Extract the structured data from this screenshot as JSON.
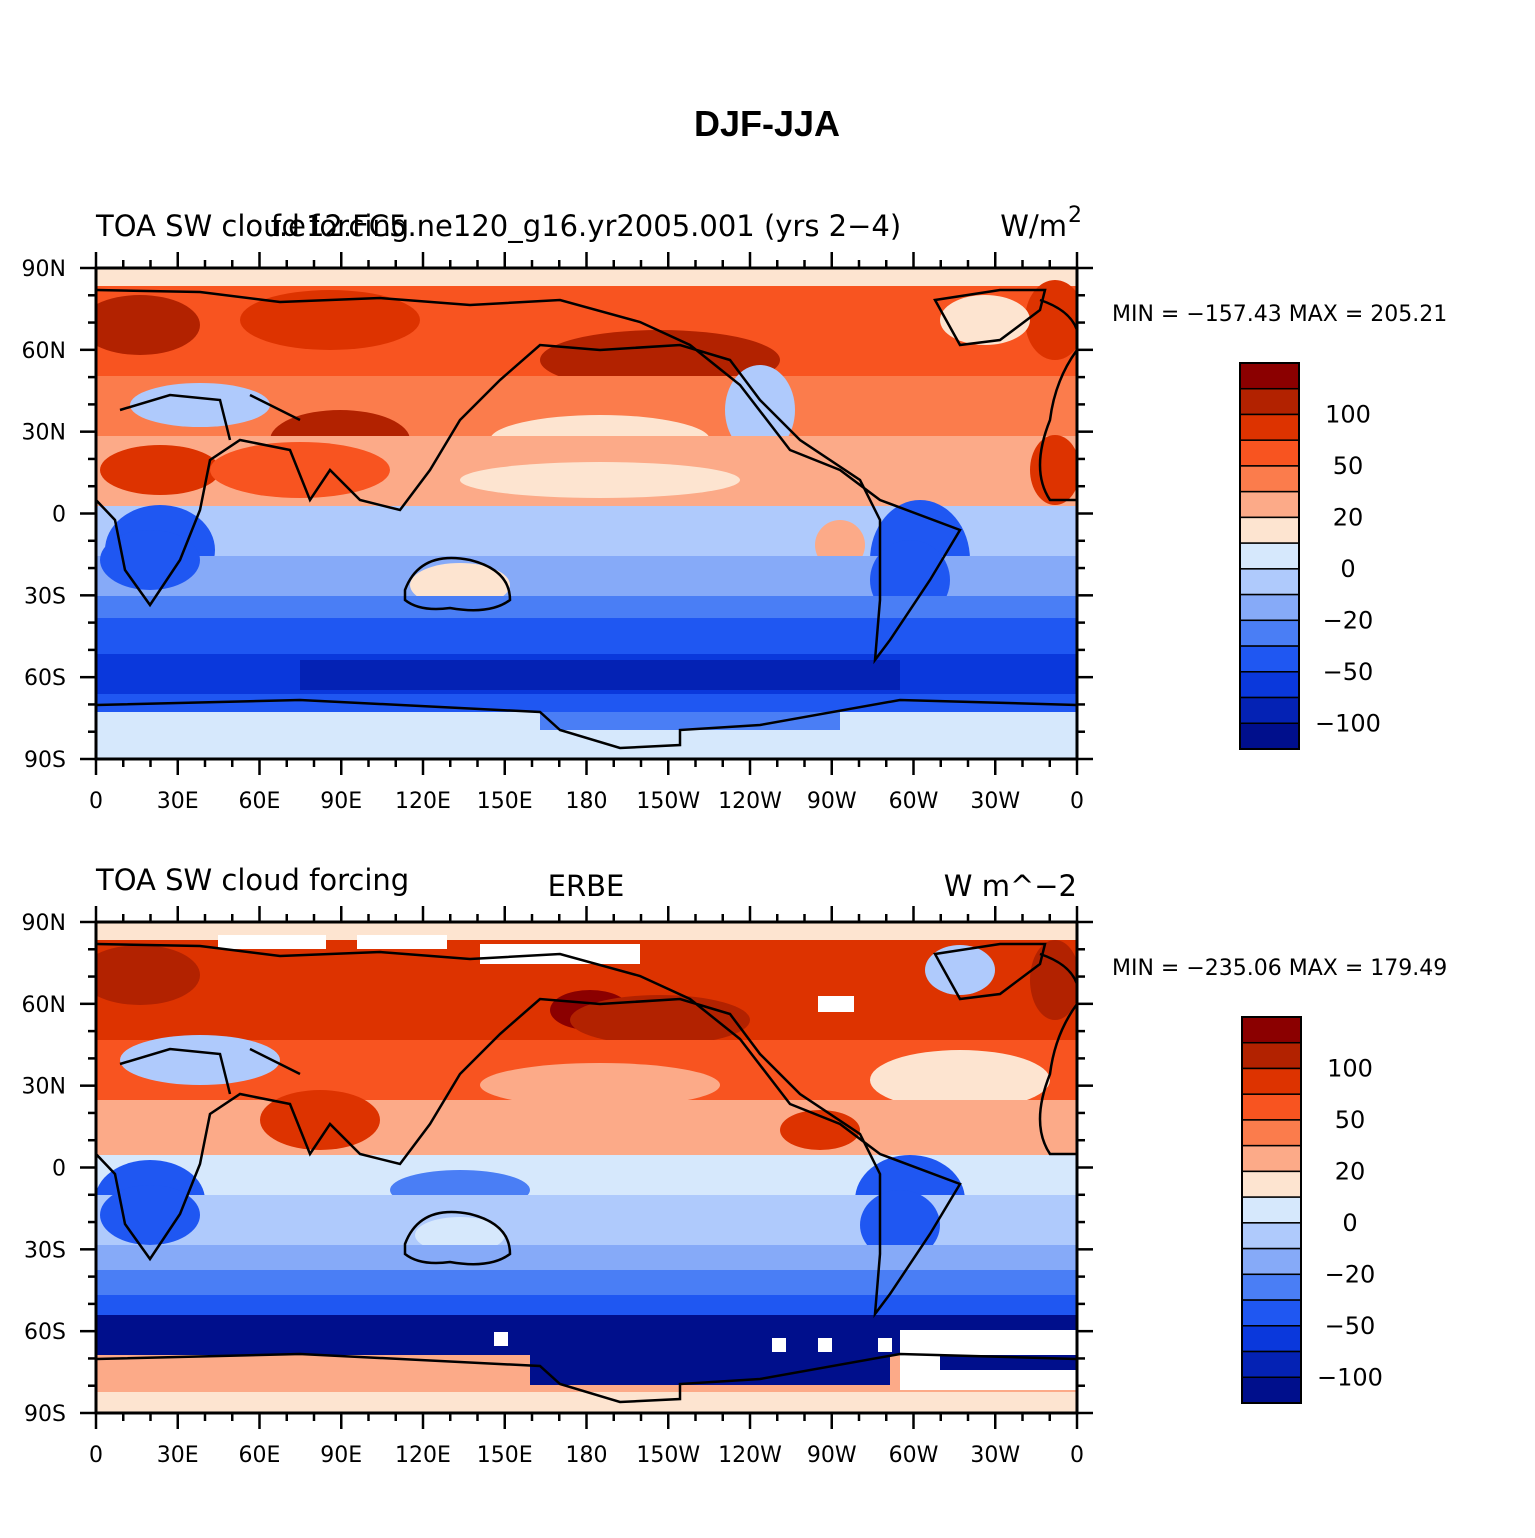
{
  "figure": {
    "title": "DJF-JJA"
  },
  "colorbar": {
    "colors": [
      "#8b0000",
      "#b22200",
      "#dd3300",
      "#f85420",
      "#fb7c4c",
      "#fcaa88",
      "#fde4d0",
      "#d6e8fc",
      "#afcafc",
      "#86aaf8",
      "#4a7ef5",
      "#1f57f2",
      "#0a38dc",
      "#0422b4",
      "#000f8c"
    ],
    "labels": [
      {
        "text": "100",
        "index": 2
      },
      {
        "text": "50",
        "index": 4
      },
      {
        "text": "20",
        "index": 6
      },
      {
        "text": "0",
        "index": 8
      },
      {
        "text": "−20",
        "index": 10
      },
      {
        "text": "−50",
        "index": 12
      },
      {
        "text": "−100",
        "index": 14
      }
    ]
  },
  "axes": {
    "lat_labels": [
      "90N",
      "60N",
      "30N",
      "0",
      "30S",
      "60S",
      "90S"
    ],
    "lon_labels": [
      "0",
      "30E",
      "60E",
      "90E",
      "120E",
      "150E",
      "180",
      "150W",
      "120W",
      "90W",
      "60W",
      "30W",
      "0"
    ]
  },
  "panels": [
    {
      "left_title": "TOA SW cloud forcing",
      "center_title": "f.e12.FC5.ne120_g16.yr2005.001 (yrs 2−4)",
      "right_title": "W/m",
      "right_title_sup": "2",
      "minmax": "MIN = −157.43  MAX = 205.21"
    },
    {
      "left_title": "TOA SW cloud forcing",
      "center_title": "ERBE",
      "right_title": "W m^−2",
      "right_title_sup": "",
      "minmax": "MIN = −235.06  MAX = 179.49"
    }
  ],
  "chart_data": {
    "type": "heatmap",
    "title": "DJF-JJA",
    "variable": "TOA SW cloud forcing",
    "units": "W/m2",
    "colorbar_levels": [
      -100,
      -50,
      -20,
      0,
      20,
      50,
      100
    ],
    "x_range": [
      0,
      360
    ],
    "y_range": [
      -90,
      90
    ],
    "panels": [
      {
        "name": "f.e12.FC5.ne120_g16.yr2005.001 (yrs 2−4)",
        "min": -157.43,
        "max": 205.21
      },
      {
        "name": "ERBE",
        "min": -235.06,
        "max": 179.49
      }
    ]
  }
}
